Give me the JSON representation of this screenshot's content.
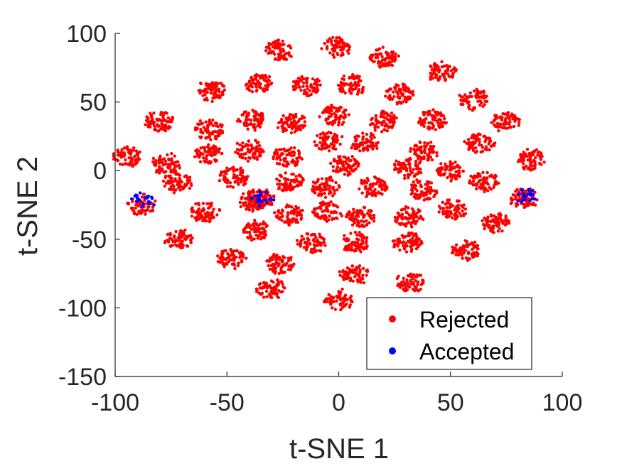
{
  "chart_data": {
    "type": "scatter",
    "xlabel": "t-SNE 1",
    "ylabel": "t-SNE 2",
    "xlim": [
      -100,
      100
    ],
    "ylim": [
      -150,
      100
    ],
    "x_ticks": [
      "-100",
      "-50",
      "0",
      "50",
      "100"
    ],
    "y_ticks": [
      "100",
      "50",
      "0",
      "-50",
      "-100",
      "-150"
    ],
    "legend": {
      "placement": "bottom-right",
      "entries": [
        "Rejected",
        "Accepted"
      ]
    },
    "colors": {
      "Rejected": "#ff0000",
      "Accepted": "#0000ff"
    },
    "series": [
      {
        "name": "Rejected",
        "clusters": [
          {
            "x": -26,
            "y": 88
          },
          {
            "x": -1,
            "y": 90
          },
          {
            "x": 20,
            "y": 82
          },
          {
            "x": 46,
            "y": 72
          },
          {
            "x": -57,
            "y": 58
          },
          {
            "x": -36,
            "y": 64
          },
          {
            "x": -14,
            "y": 62
          },
          {
            "x": 6,
            "y": 62
          },
          {
            "x": 27,
            "y": 56
          },
          {
            "x": 60,
            "y": 52
          },
          {
            "x": -80,
            "y": 36
          },
          {
            "x": -58,
            "y": 30
          },
          {
            "x": -39,
            "y": 37
          },
          {
            "x": -21,
            "y": 35
          },
          {
            "x": -2,
            "y": 40
          },
          {
            "x": 20,
            "y": 36
          },
          {
            "x": 42,
            "y": 37
          },
          {
            "x": 75,
            "y": 36
          },
          {
            "x": -94,
            "y": 10
          },
          {
            "x": -77,
            "y": 5
          },
          {
            "x": -59,
            "y": 12
          },
          {
            "x": -40,
            "y": 15
          },
          {
            "x": -23,
            "y": 10
          },
          {
            "x": -5,
            "y": 22
          },
          {
            "x": 12,
            "y": 20
          },
          {
            "x": 38,
            "y": 14
          },
          {
            "x": 63,
            "y": 20
          },
          {
            "x": 86,
            "y": 8
          },
          {
            "x": -72,
            "y": -8
          },
          {
            "x": -47,
            "y": -5
          },
          {
            "x": -22,
            "y": -8
          },
          {
            "x": -6,
            "y": -12
          },
          {
            "x": 3,
            "y": 4
          },
          {
            "x": 15,
            "y": -12
          },
          {
            "x": 31,
            "y": 2
          },
          {
            "x": 50,
            "y": 0
          },
          {
            "x": 38,
            "y": -14
          },
          {
            "x": 65,
            "y": -8
          },
          {
            "x": -60,
            "y": -30
          },
          {
            "x": -38,
            "y": -22
          },
          {
            "x": -22,
            "y": -32
          },
          {
            "x": -5,
            "y": -30
          },
          {
            "x": 10,
            "y": -34
          },
          {
            "x": 31,
            "y": -34
          },
          {
            "x": 51,
            "y": -28
          },
          {
            "x": 70,
            "y": -38
          },
          {
            "x": -72,
            "y": -50
          },
          {
            "x": -37,
            "y": -44
          },
          {
            "x": -12,
            "y": -52
          },
          {
            "x": 7,
            "y": -52
          },
          {
            "x": 31,
            "y": -52
          },
          {
            "x": 57,
            "y": -58
          },
          {
            "x": -48,
            "y": -64
          },
          {
            "x": -26,
            "y": -68
          },
          {
            "x": 7,
            "y": -75
          },
          {
            "x": 32,
            "y": -82
          },
          {
            "x": -30,
            "y": -86
          },
          {
            "x": 0,
            "y": -94
          },
          {
            "x": -88,
            "y": -25
          },
          {
            "x": 83,
            "y": -20
          },
          {
            "x": -35,
            "y": -20
          }
        ]
      },
      {
        "name": "Accepted",
        "clusters": [
          {
            "x": -88,
            "y": -22
          },
          {
            "x": 84,
            "y": -19
          },
          {
            "x": -34,
            "y": -20
          }
        ]
      }
    ]
  }
}
